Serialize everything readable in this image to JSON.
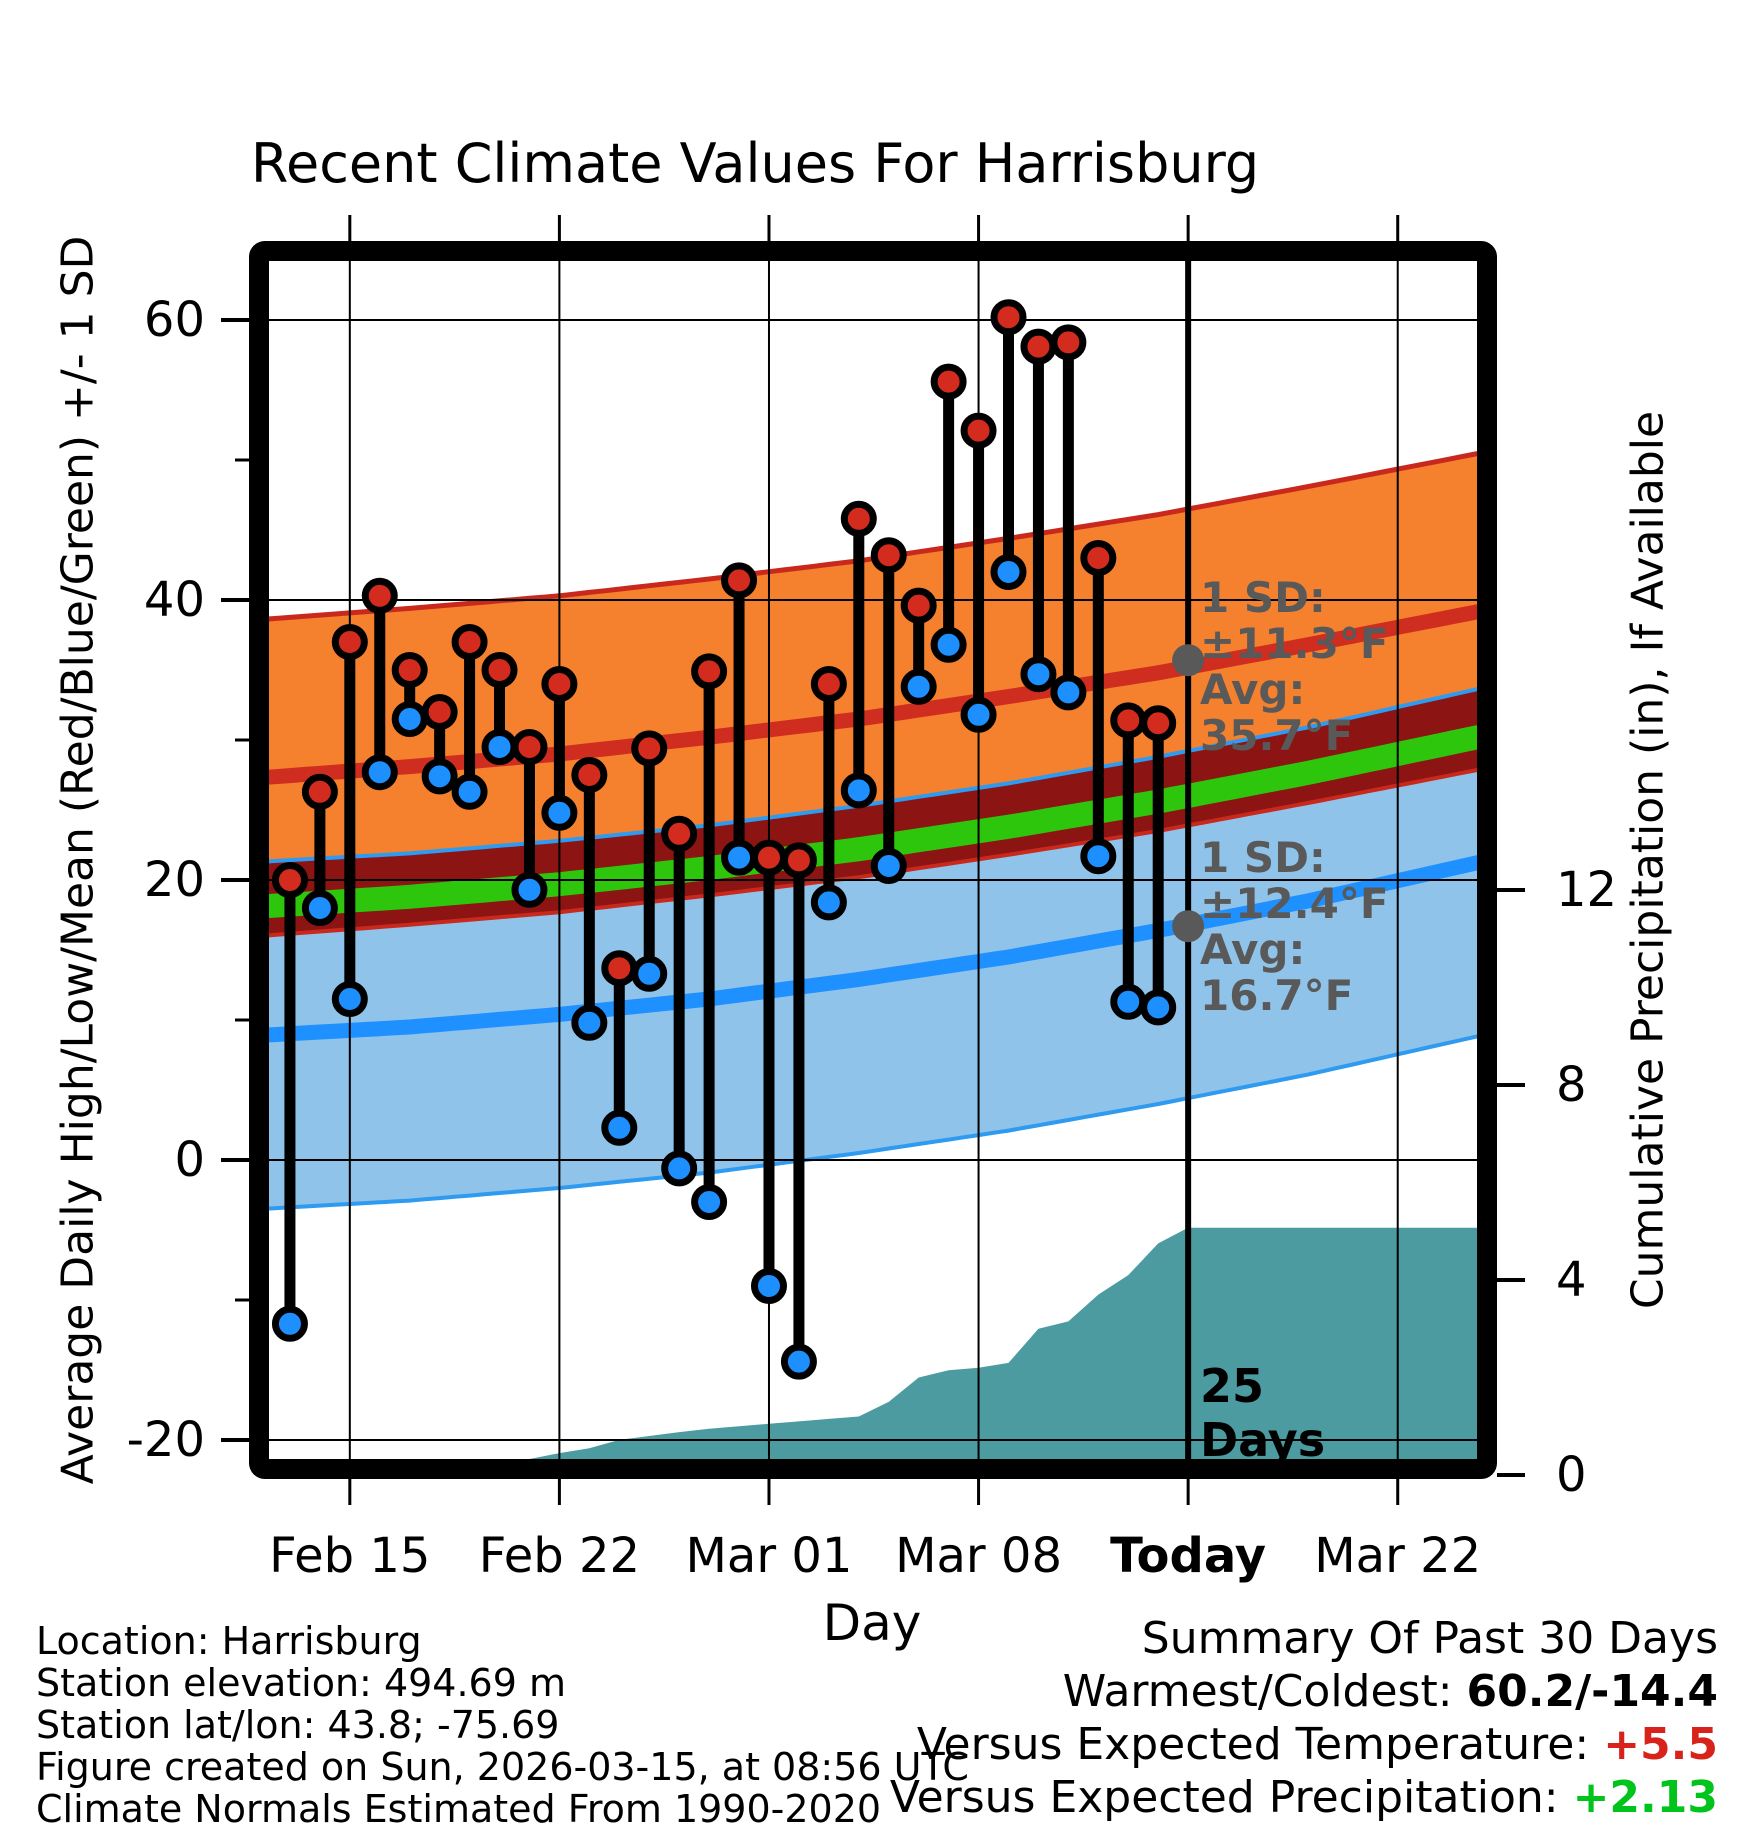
{
  "title": "Recent Climate Values For Harrisburg",
  "axes": {
    "x_label": "Day",
    "y_left_label": "Average Daily High/Low/Mean (Red/Blue/Green) +/- 1 SD",
    "y_right_label": "Cumulative Precipitation (in), If Available"
  },
  "footer_left": {
    "lines": [
      "Location: Harrisburg",
      "Station elevation: 494.69 m",
      "Station lat/lon: 43.8; -75.69",
      "Figure created on Sun, 2026-03-15, at 08:56 UTC",
      "Climate Normals Estimated From 1990-2020"
    ]
  },
  "summary": {
    "title": "Summary Of Past 30 Days",
    "rows": [
      {
        "label": "Warmest/Coldest: ",
        "value": "60.2/-14.4",
        "color": "#000000"
      },
      {
        "label": "Versus Expected Temperature:  ",
        "value": "+5.5",
        "color": "#d8231c"
      },
      {
        "label": "Versus Expected Precipitation: ",
        "value": "+2.13",
        "color": "#00c41c"
      }
    ]
  },
  "chart_data": {
    "type": "composite",
    "title": "Recent Climate Values For Harrisburg",
    "xlabel": "Day",
    "ylabel_left": "Average Daily High/Low/Mean (Red/Blue/Green) +/- 1 SD",
    "ylabel_right": "Cumulative Precipitation (in), If Available",
    "temp_axis": {
      "ticks": [
        60,
        40,
        20,
        0,
        -20
      ],
      "minor_ticks": [
        50,
        30,
        10,
        -10
      ],
      "range": [
        -22,
        65
      ]
    },
    "precip_axis": {
      "ticks": [
        12,
        8,
        4,
        0
      ],
      "range": [
        0,
        25
      ]
    },
    "x_axis": {
      "start_date": "Feb 12",
      "span_days": 41,
      "ticks": [
        {
          "d": 3,
          "label": "Feb 15",
          "bold": false
        },
        {
          "d": 10,
          "label": "Feb 22",
          "bold": false
        },
        {
          "d": 17,
          "label": "Mar 01",
          "bold": false
        },
        {
          "d": 24,
          "label": "Mar 08",
          "bold": false
        },
        {
          "d": 31,
          "label": "Today",
          "bold": true
        },
        {
          "d": 38,
          "label": "Mar 22",
          "bold": false
        }
      ],
      "today_d": 31
    },
    "daily": {
      "dates": [
        "Feb 13",
        "Feb 14",
        "Feb 15",
        "Feb 16",
        "Feb 17",
        "Feb 18",
        "Feb 19",
        "Feb 20",
        "Feb 21",
        "Feb 22",
        "Feb 23",
        "Feb 24",
        "Feb 25",
        "Feb 26",
        "Feb 27",
        "Feb 28",
        "Mar 01",
        "Mar 02",
        "Mar 03",
        "Mar 04",
        "Mar 05",
        "Mar 06",
        "Mar 07",
        "Mar 08",
        "Mar 09",
        "Mar 10",
        "Mar 11",
        "Mar 12",
        "Mar 13",
        "Mar 14"
      ],
      "highs": [
        20.0,
        26.3,
        37.0,
        40.3,
        35.0,
        32.0,
        37.0,
        35.0,
        29.5,
        34.0,
        27.5,
        13.7,
        29.4,
        23.3,
        34.9,
        41.4,
        21.6,
        21.4,
        34.0,
        45.8,
        43.2,
        39.6,
        55.6,
        52.1,
        60.2,
        58.1,
        58.4,
        43.0,
        31.4,
        31.2
      ],
      "lows": [
        -11.7,
        18.0,
        11.5,
        27.7,
        31.5,
        27.4,
        26.3,
        29.5,
        19.3,
        24.8,
        9.8,
        2.3,
        13.3,
        -0.6,
        -3.0,
        21.6,
        -9.0,
        -14.4,
        18.4,
        26.4,
        21.0,
        33.8,
        36.8,
        31.8,
        42.0,
        34.7,
        33.4,
        21.7,
        11.3,
        10.9
      ]
    },
    "climatology": {
      "sd_high": 11.3,
      "sd_low": 12.4,
      "samples": [
        {
          "d": 0,
          "high": 27.3,
          "low": 8.9
        },
        {
          "d": 5,
          "high": 28.1,
          "low": 9.5
        },
        {
          "d": 10,
          "high": 29.0,
          "low": 10.4
        },
        {
          "d": 15,
          "high": 30.2,
          "low": 11.5
        },
        {
          "d": 20,
          "high": 31.5,
          "low": 12.9
        },
        {
          "d": 25,
          "high": 33.1,
          "low": 14.5
        },
        {
          "d": 30,
          "high": 34.8,
          "low": 16.4
        },
        {
          "d": 35,
          "high": 36.8,
          "low": 18.5
        },
        {
          "d": 41,
          "high": 39.3,
          "low": 21.4
        }
      ]
    },
    "precip_cumulative_points": [
      [
        0,
        0
      ],
      [
        7.5,
        0
      ],
      [
        8,
        0.1
      ],
      [
        9,
        0.3
      ],
      [
        10,
        0.45
      ],
      [
        11,
        0.55
      ],
      [
        12,
        0.72
      ],
      [
        13,
        0.8
      ],
      [
        14,
        0.88
      ],
      [
        15,
        0.95
      ],
      [
        16,
        1.0
      ],
      [
        17,
        1.05
      ],
      [
        18,
        1.1
      ],
      [
        19,
        1.15
      ],
      [
        20,
        1.2
      ],
      [
        21,
        1.5
      ],
      [
        22,
        2.0
      ],
      [
        23,
        2.15
      ],
      [
        24,
        2.2
      ],
      [
        25,
        2.3
      ],
      [
        26,
        3.0
      ],
      [
        27,
        3.15
      ],
      [
        28,
        3.7
      ],
      [
        29,
        4.1
      ],
      [
        30,
        4.75
      ],
      [
        31,
        5.07
      ],
      [
        41,
        5.07
      ]
    ],
    "annotations": {
      "high_block": {
        "lines": [
          "1 SD:",
          "±11.3°F",
          "Avg:",
          "35.7°F"
        ],
        "dot_temp": 35.7
      },
      "low_block": {
        "lines": [
          "1 SD:",
          "±12.4°F",
          "Avg:",
          "16.7°F"
        ],
        "dot_temp": 16.7
      },
      "precip_days": [
        "25",
        "Days"
      ]
    },
    "colors": {
      "orange_band": "#f5802e",
      "blue_band": "#8fc3e9",
      "overlap_band": "#8c1413",
      "band_edge_red": "#c9291d",
      "band_edge_blue": "#2e9bf0",
      "avg_high_line": "#ce2d1f",
      "avg_low_line": "#1e90ff",
      "mean_line": "#2ec60d",
      "dot_high": "#d32b1e",
      "dot_low": "#1e8fff",
      "stem": "#000000",
      "teal_precip": "#4b9ba1",
      "gray_annotation": "#595959",
      "grid": "#000000",
      "frame": "#000000"
    },
    "legend_position": "none",
    "grid": true
  }
}
